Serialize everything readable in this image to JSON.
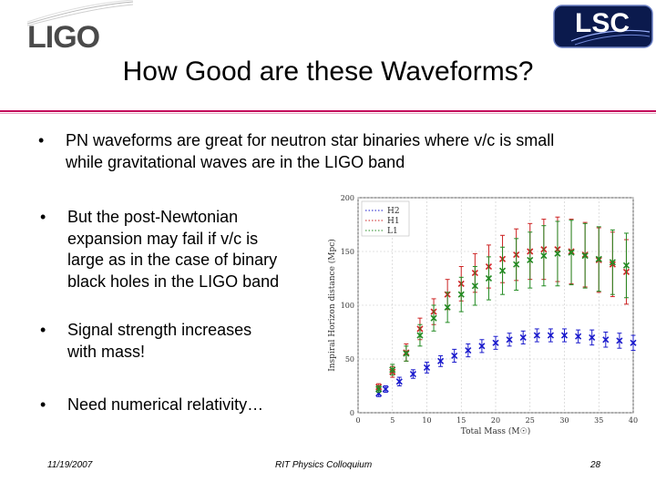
{
  "header": {
    "logo_text": "LIGO",
    "badge_text": "LSC",
    "title": "How Good are these Waveforms?"
  },
  "bullets": [
    {
      "text_line1": "PN waveforms are great for neutron star binaries where v/c is small",
      "text_line2": "while gravitational waves are in the LIGO band"
    },
    {
      "text_line1": "But the post-Newtonian",
      "text_line2": "expansion may fail if v/c is",
      "text_line3": "large as in the case of binary",
      "text_line4": "black holes in the LIGO band"
    },
    {
      "text_line1": "Signal strength increases",
      "text_line2": "with mass!"
    },
    {
      "text_line1": "Need numerical relativity…"
    }
  ],
  "bullet_symbol": "•",
  "footer": {
    "date": "11/19/2007",
    "center": "RIT Physics Colloquium",
    "page": "28"
  },
  "colors": {
    "accent_rule": "#c3005a",
    "h2": "#1a1acc",
    "h1": "#cc2222",
    "l1": "#228b22"
  },
  "chart_data": {
    "type": "scatter",
    "xlabel": "Total Mass (M☉)",
    "ylabel": "Inspiral Horizon distance (Mpc)",
    "xlim": [
      0,
      40
    ],
    "ylim": [
      0,
      200
    ],
    "xticks": [
      "0",
      "5",
      "10",
      "15",
      "20",
      "25",
      "30",
      "35",
      "40"
    ],
    "yticks": [
      "0",
      "50",
      "100",
      "150",
      "200"
    ],
    "legend": [
      "H2",
      "H1",
      "L1"
    ],
    "legend_placement": "top-left",
    "series": [
      {
        "name": "H2",
        "color": "#1a1acc",
        "x": [
          3,
          4,
          6,
          8,
          10,
          12,
          14,
          16,
          18,
          20,
          22,
          24,
          26,
          28,
          30,
          32,
          34,
          36,
          38,
          40
        ],
        "y": [
          18,
          22,
          29,
          36,
          42,
          48,
          53,
          58,
          62,
          65,
          68,
          70,
          72,
          72,
          72,
          71,
          70,
          68,
          67,
          65
        ],
        "err": [
          3,
          3,
          4,
          4,
          5,
          5,
          6,
          6,
          6,
          6,
          6,
          6,
          6,
          6,
          6,
          6,
          7,
          7,
          7,
          7
        ]
      },
      {
        "name": "H1",
        "color": "#cc2222",
        "x": [
          3,
          5,
          7,
          9,
          11,
          13,
          15,
          17,
          19,
          21,
          23,
          25,
          27,
          29,
          31,
          33,
          35,
          37,
          39
        ],
        "y": [
          24,
          38,
          56,
          78,
          94,
          110,
          120,
          130,
          136,
          143,
          147,
          150,
          152,
          152,
          150,
          147,
          142,
          138,
          131
        ],
        "err": [
          3,
          5,
          8,
          10,
          12,
          14,
          16,
          18,
          20,
          22,
          24,
          26,
          28,
          30,
          30,
          30,
          30,
          30,
          30
        ]
      },
      {
        "name": "L1",
        "color": "#228b22",
        "x": [
          3,
          5,
          7,
          9,
          11,
          13,
          15,
          17,
          19,
          21,
          23,
          25,
          27,
          29,
          31,
          33,
          35,
          37,
          39
        ],
        "y": [
          22,
          40,
          55,
          72,
          88,
          98,
          110,
          118,
          125,
          132,
          138,
          142,
          146,
          148,
          149,
          146,
          143,
          140,
          137
        ],
        "err": [
          3,
          5,
          7,
          10,
          12,
          14,
          16,
          18,
          20,
          22,
          24,
          26,
          28,
          30,
          30,
          30,
          30,
          30,
          30
        ]
      }
    ]
  }
}
